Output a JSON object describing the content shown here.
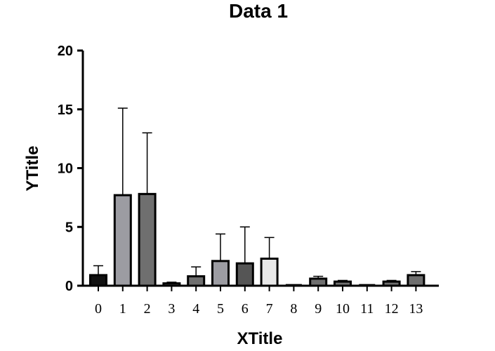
{
  "chart_data": {
    "type": "bar",
    "title": "Data 1",
    "xlabel": "XTitle",
    "ylabel": "YTitle",
    "categories": [
      "0",
      "1",
      "2",
      "3",
      "4",
      "5",
      "6",
      "7",
      "8",
      "9",
      "10",
      "11",
      "12",
      "13"
    ],
    "values": [
      0.9,
      7.7,
      7.8,
      0.2,
      0.8,
      2.1,
      1.9,
      2.3,
      0.05,
      0.6,
      0.35,
      0.05,
      0.35,
      0.9
    ],
    "error_upper": [
      1.7,
      15.1,
      13.0,
      0.3,
      1.6,
      4.4,
      5.0,
      4.1,
      0.1,
      0.8,
      0.45,
      0.05,
      0.45,
      1.2
    ],
    "bar_colors": [
      "#111111",
      "#9c9ca2",
      "#6f6f6f",
      "#5a5a5a",
      "#6f6f6f",
      "#9c9ca2",
      "#555555",
      "#e8e8e8",
      "#333333",
      "#6f6f6f",
      "#6f6f6f",
      "#444444",
      "#6f6f6f",
      "#6f6f6f"
    ],
    "ylim": [
      0,
      20
    ],
    "yticks": [
      0,
      5,
      10,
      15,
      20
    ],
    "grid": false,
    "legend": "none"
  }
}
